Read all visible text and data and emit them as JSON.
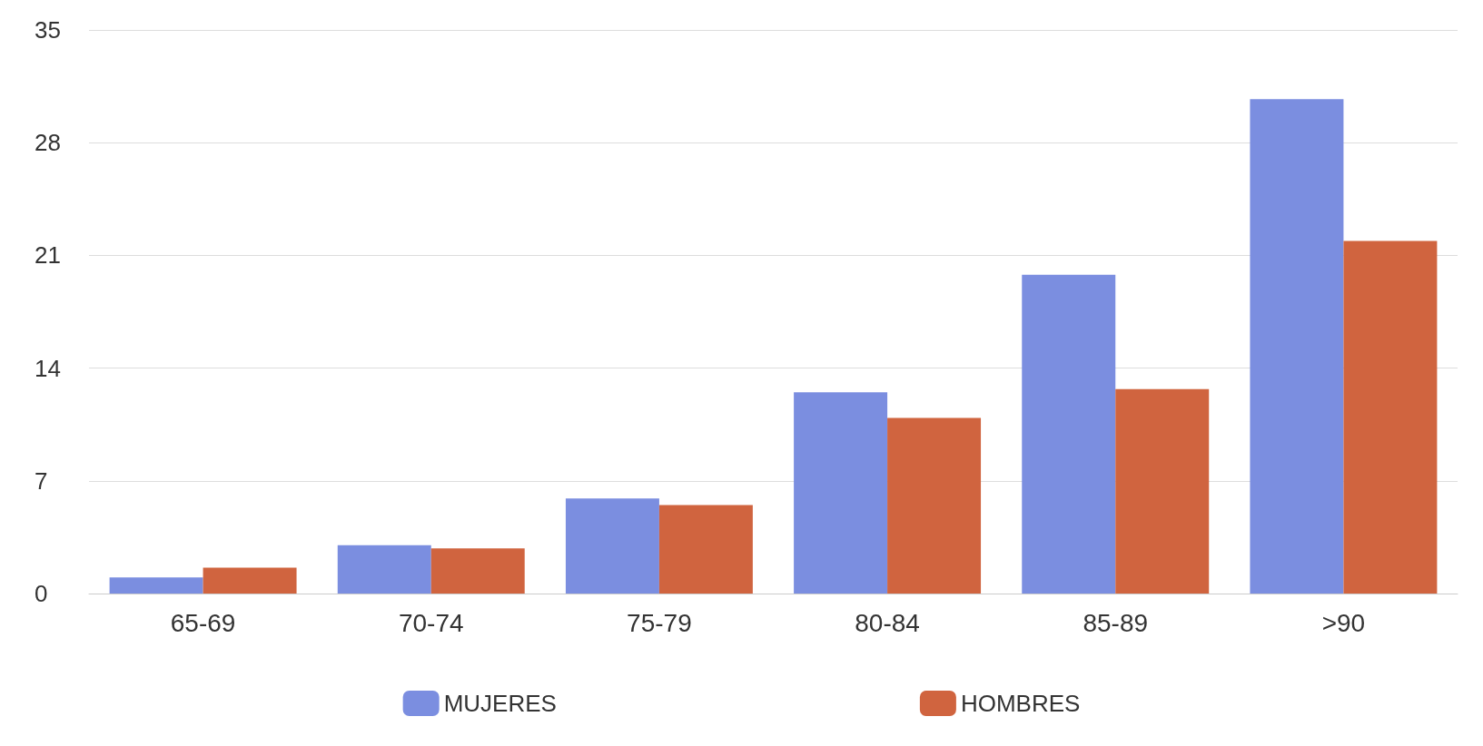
{
  "chart_data": {
    "type": "bar",
    "categories": [
      "65-69",
      "70-74",
      "75-79",
      "80-84",
      "85-89",
      ">90"
    ],
    "series": [
      {
        "name": "MUJERES",
        "color": "#7b8ee0",
        "values": [
          1.0,
          3.0,
          5.9,
          12.5,
          19.8,
          30.7
        ]
      },
      {
        "name": "HOMBRES",
        "color": "#d0643f",
        "values": [
          1.6,
          2.8,
          5.5,
          10.9,
          12.7,
          21.9
        ]
      }
    ],
    "ylim": [
      0,
      35
    ],
    "yticks": [
      0,
      7,
      14,
      21,
      28,
      35
    ],
    "grid": "y",
    "legend": "bottom"
  }
}
